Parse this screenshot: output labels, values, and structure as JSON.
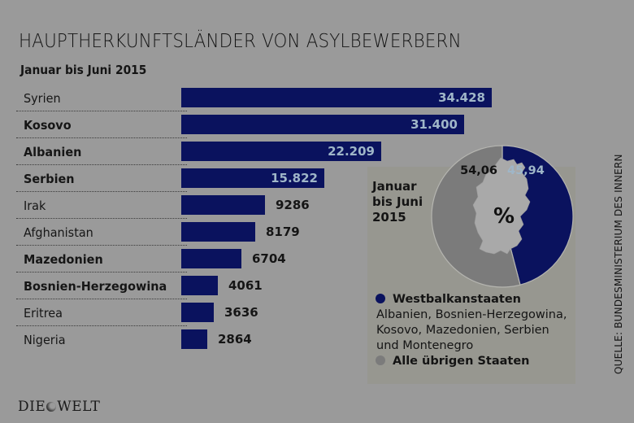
{
  "title": "HAUPTHERKUNFTSLÄNDER VON ASYLBEWERBERN",
  "subtitle": "Januar bis Juni 2015",
  "source": "QUELLE: BUNDESMINISTERIUM DES INNERN",
  "logo": {
    "left": "DIE",
    "right": "WELT",
    "icon": "globe-icon"
  },
  "colors": {
    "bar": "#0a125e",
    "bar_label": "#9fb6c8",
    "background": "#9a9a9a",
    "panel": "#979790",
    "other": "#7b7b7b",
    "map": "#a9a9a9"
  },
  "chart_data": [
    {
      "type": "bar",
      "orientation": "horizontal",
      "title": "HAUPTHERKUNFTSLÄNDER VON ASYLBEWERBERN",
      "subtitle": "Januar bis Juni 2015",
      "categories": [
        "Syrien",
        "Kosovo",
        "Albanien",
        "Serbien",
        "Irak",
        "Afghanistan",
        "Mazedonien",
        "Bosnien-Herzegowina",
        "Eritrea",
        "Nigeria"
      ],
      "values": [
        34428,
        31400,
        22209,
        15822,
        9286,
        8179,
        6704,
        4061,
        3636,
        2864
      ],
      "value_labels": [
        "34.428",
        "31.400",
        "22.209",
        "15.822",
        "9286",
        "8179",
        "6704",
        "4061",
        "3636",
        "2864"
      ],
      "bold_categories": [
        "Kosovo",
        "Albanien",
        "Serbien",
        "Mazedonien",
        "Bosnien-Herzegowina"
      ],
      "xlim": [
        0,
        34428
      ],
      "grid": false,
      "xlabel": "",
      "ylabel": ""
    },
    {
      "type": "pie",
      "title": "Januar bis Juni 2015",
      "center_label": "%",
      "slices": [
        {
          "name": "Westbalkanstaaten",
          "value": 45.94,
          "label": "45,94",
          "color": "#0a125e"
        },
        {
          "name": "Alle übrigen Staaten",
          "value": 54.06,
          "label": "54,06",
          "color": "#7b7b7b"
        }
      ],
      "legend": [
        {
          "name": "Westbalkanstaaten",
          "description": "Albanien, Bosnien-Herzegowina, Kosovo, Mazedonien, Serbien und Montenegro",
          "color": "#0a125e"
        },
        {
          "name": "Alle übrigen Staaten",
          "description": "",
          "color": "#7b7b7b"
        }
      ],
      "legend_position": "bottom"
    }
  ],
  "panel": {
    "date_lines": [
      "Januar",
      "bis Juni",
      "2015"
    ],
    "legend_desc_lines": [
      "Albanien, Bosnien-Herzegowina,",
      "Kosovo, Mazedonien, Serbien",
      "und Montenegro"
    ]
  }
}
